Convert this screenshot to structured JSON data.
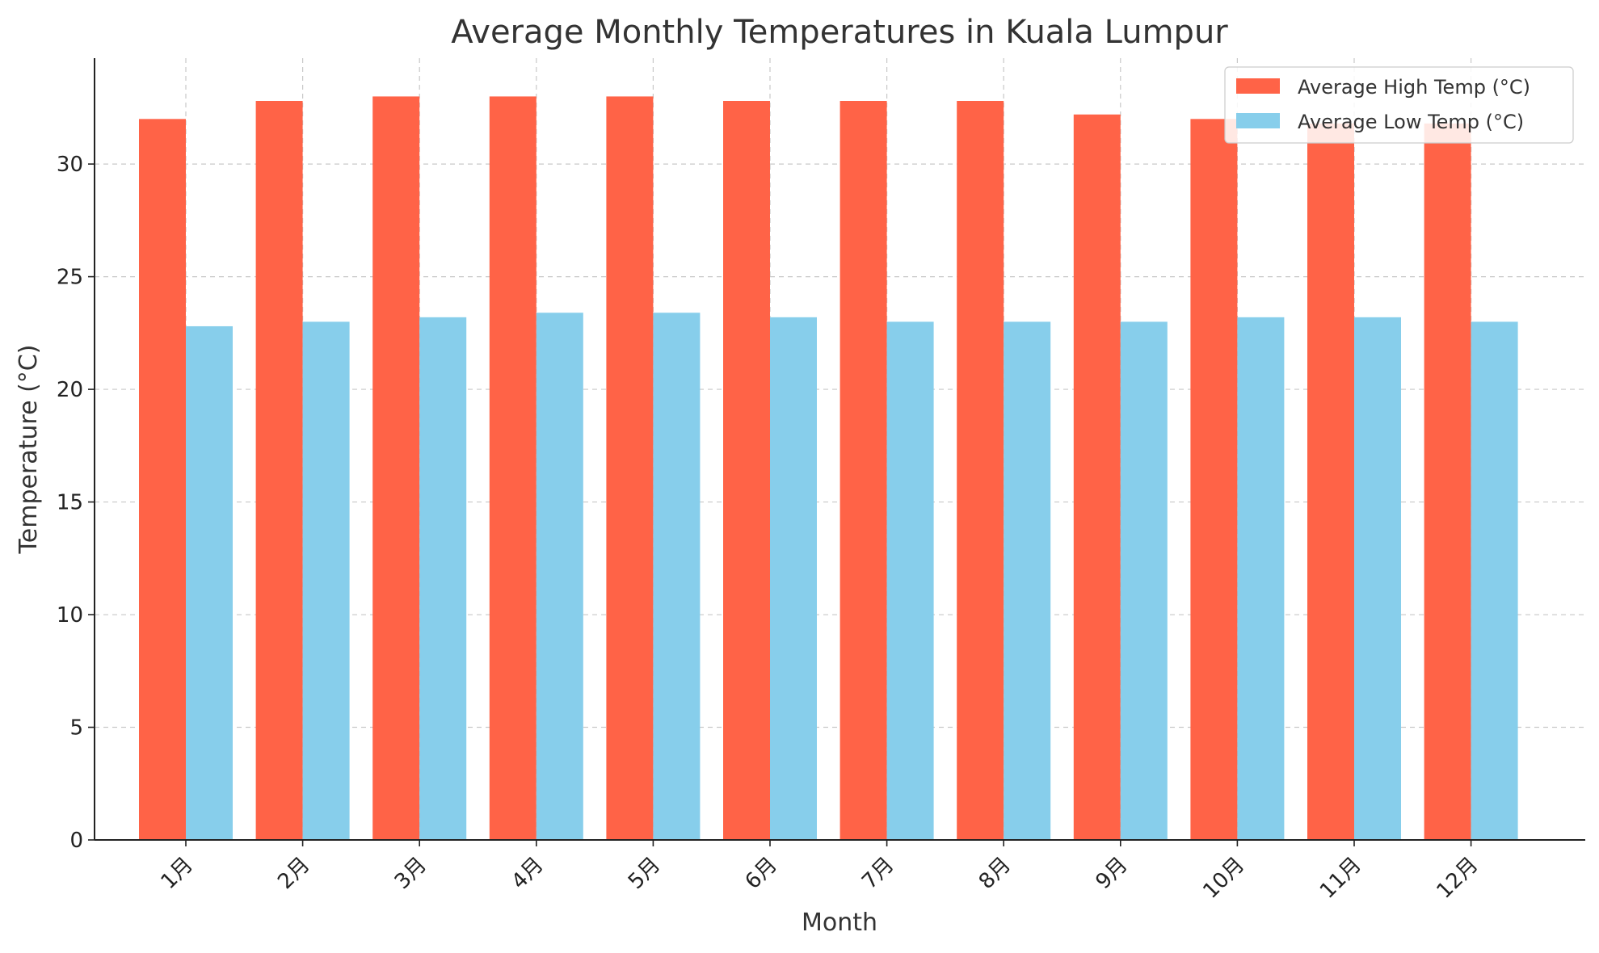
{
  "chart_data": {
    "type": "bar",
    "title": "Average Monthly Temperatures in Kuala Lumpur",
    "xlabel": "Month",
    "ylabel": "Temperature (°C)",
    "categories": [
      "1月",
      "2月",
      "3月",
      "4月",
      "5月",
      "6月",
      "7月",
      "8月",
      "9月",
      "10月",
      "11月",
      "12月"
    ],
    "series": [
      {
        "name": "Average High Temp (°C)",
        "color": "#ff6347",
        "values": [
          32.0,
          32.8,
          33.0,
          33.0,
          33.0,
          32.8,
          32.8,
          32.8,
          32.2,
          32.0,
          31.8,
          31.8
        ]
      },
      {
        "name": "Average Low Temp (°C)",
        "color": "#87ceeb",
        "values": [
          22.8,
          23.0,
          23.2,
          23.4,
          23.4,
          23.2,
          23.0,
          23.0,
          23.0,
          23.2,
          23.2,
          23.0
        ]
      }
    ],
    "ylim": [
      0,
      34.7
    ],
    "yticks": [
      0,
      5,
      10,
      15,
      20,
      25,
      30
    ],
    "grid": true,
    "legend_position": "top-right"
  }
}
